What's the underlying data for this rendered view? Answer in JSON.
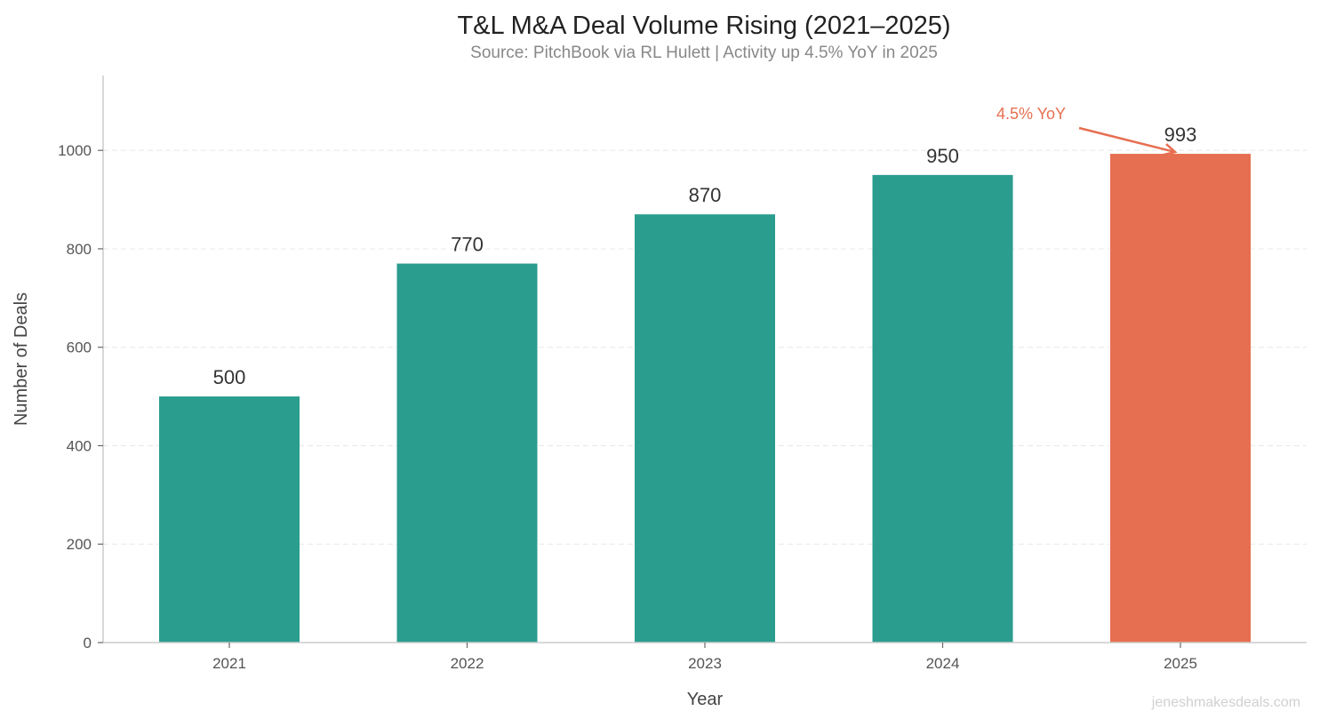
{
  "chart_data": {
    "type": "bar",
    "title": "T&L M&A Deal Volume Rising (2021–2025)",
    "subtitle": "Source: PitchBook via RL Hulett | Activity up 4.5% YoY in 2025",
    "xlabel": "Year",
    "ylabel": "Number of Deals",
    "categories": [
      "2021",
      "2022",
      "2023",
      "2024",
      "2025"
    ],
    "values": [
      500,
      770,
      870,
      950,
      993
    ],
    "data_labels": [
      "500",
      "770",
      "870",
      "950",
      "993"
    ],
    "ylim": [
      0,
      1152
    ],
    "yticks": [
      0,
      200,
      400,
      600,
      800,
      1000
    ],
    "ytick_labels": [
      "0",
      "200",
      "400",
      "600",
      "800",
      "1000"
    ],
    "grid": "horizontal dashed",
    "colors": {
      "default": "#2a9d8f",
      "highlight": "#e76f51"
    },
    "highlight_category": "2025",
    "annotation": {
      "text": "4.5% YoY",
      "target_category": "2025",
      "target_value": 993,
      "color": "#e76f51"
    }
  },
  "watermark": "jeneshmakesdeals.com"
}
